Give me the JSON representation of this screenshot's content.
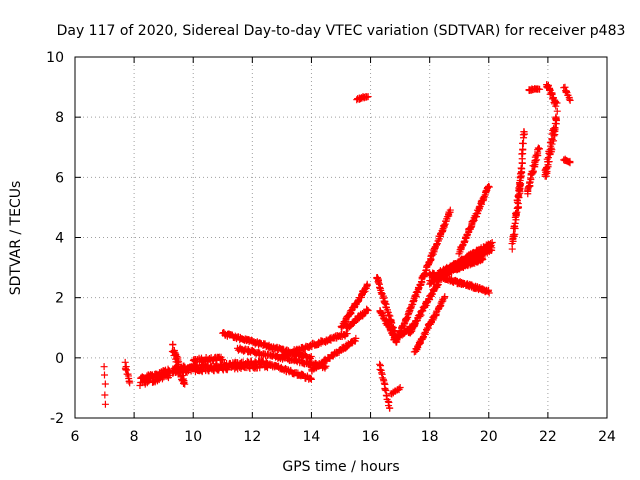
{
  "chart_data": {
    "type": "scatter",
    "title": "Day 117 of 2020, Sidereal Day-to-day VTEC variation (SDTVAR) for receiver p483",
    "xlabel": "GPS time / hours",
    "ylabel": "SDTVAR / TECUs",
    "xlim": [
      6,
      24
    ],
    "ylim": [
      -2,
      10
    ],
    "xticks": [
      "6",
      "8",
      "10",
      "12",
      "14",
      "16",
      "18",
      "20",
      "22",
      "24"
    ],
    "yticks": [
      "-2",
      "0",
      "2",
      "4",
      "6",
      "8",
      "10"
    ],
    "grid": true,
    "marker": "plus",
    "color": "#ff0000",
    "segments": [
      {
        "x0": 7.0,
        "x1": 7.02,
        "y0": -0.3,
        "y1": -1.5,
        "n": 5,
        "jitter": 0.1
      },
      {
        "x0": 7.7,
        "x1": 7.85,
        "y0": -0.2,
        "y1": -0.8,
        "n": 12,
        "jitter": 0.2
      },
      {
        "x0": 8.2,
        "x1": 9.2,
        "y0": -0.8,
        "y1": -0.5,
        "n": 90,
        "jitter": 0.3
      },
      {
        "x0": 9.3,
        "x1": 12.5,
        "y0": -0.4,
        "y1": -0.2,
        "n": 220,
        "jitter": 0.25
      },
      {
        "x0": 9.3,
        "x1": 9.7,
        "y0": 0.4,
        "y1": -0.9,
        "n": 40,
        "jitter": 0.35
      },
      {
        "x0": 10.0,
        "x1": 11.0,
        "y0": -0.1,
        "y1": 0.0,
        "n": 40,
        "jitter": 0.15
      },
      {
        "x0": 11.0,
        "x1": 14.0,
        "y0": 0.8,
        "y1": 0.0,
        "n": 130,
        "jitter": 0.1
      },
      {
        "x0": 11.5,
        "x1": 14.5,
        "y0": 0.3,
        "y1": -0.3,
        "n": 110,
        "jitter": 0.1
      },
      {
        "x0": 12.5,
        "x1": 14.0,
        "y0": -0.2,
        "y1": -0.7,
        "n": 60,
        "jitter": 0.1
      },
      {
        "x0": 13.0,
        "x1": 15.2,
        "y0": 0.1,
        "y1": 0.8,
        "n": 90,
        "jitter": 0.1
      },
      {
        "x0": 14.0,
        "x1": 15.5,
        "y0": -0.4,
        "y1": 0.6,
        "n": 70,
        "jitter": 0.1
      },
      {
        "x0": 15.0,
        "x1": 15.9,
        "y0": 1.0,
        "y1": 2.4,
        "n": 60,
        "jitter": 0.1
      },
      {
        "x0": 15.2,
        "x1": 15.9,
        "y0": 1.0,
        "y1": 1.6,
        "n": 40,
        "jitter": 0.1
      },
      {
        "x0": 15.55,
        "x1": 15.9,
        "y0": 8.6,
        "y1": 8.7,
        "n": 16,
        "jitter": 0.05
      },
      {
        "x0": 16.2,
        "x1": 16.9,
        "y0": 2.7,
        "y1": 0.6,
        "n": 50,
        "jitter": 0.1
      },
      {
        "x0": 16.3,
        "x1": 16.9,
        "y0": 1.6,
        "y1": 0.5,
        "n": 40,
        "jitter": 0.1
      },
      {
        "x0": 16.3,
        "x1": 16.65,
        "y0": -0.2,
        "y1": -1.7,
        "n": 22,
        "jitter": 0.1
      },
      {
        "x0": 16.7,
        "x1": 17.0,
        "y0": -1.2,
        "y1": -1.0,
        "n": 12,
        "jitter": 0.05
      },
      {
        "x0": 16.8,
        "x1": 17.5,
        "y0": 0.6,
        "y1": 1.1,
        "n": 40,
        "jitter": 0.1
      },
      {
        "x0": 17.0,
        "x1": 18.7,
        "y0": 0.8,
        "y1": 4.9,
        "n": 120,
        "jitter": 0.1
      },
      {
        "x0": 17.3,
        "x1": 18.3,
        "y0": 0.8,
        "y1": 2.5,
        "n": 70,
        "jitter": 0.1
      },
      {
        "x0": 17.5,
        "x1": 18.5,
        "y0": 0.2,
        "y1": 2.0,
        "n": 60,
        "jitter": 0.1
      },
      {
        "x0": 18.0,
        "x1": 20.1,
        "y0": 2.5,
        "y1": 3.6,
        "n": 130,
        "jitter": 0.12
      },
      {
        "x0": 18.0,
        "x1": 20.0,
        "y0": 2.8,
        "y1": 2.2,
        "n": 120,
        "jitter": 0.1
      },
      {
        "x0": 18.3,
        "x1": 20.1,
        "y0": 2.8,
        "y1": 3.8,
        "n": 110,
        "jitter": 0.12
      },
      {
        "x0": 19.0,
        "x1": 20.0,
        "y0": 3.5,
        "y1": 5.7,
        "n": 70,
        "jitter": 0.1
      },
      {
        "x0": 18.5,
        "x1": 19.8,
        "y0": 2.8,
        "y1": 3.3,
        "n": 80,
        "jitter": 0.1
      },
      {
        "x0": 20.8,
        "x1": 21.1,
        "y0": 3.7,
        "y1": 6.3,
        "n": 50,
        "jitter": 0.3
      },
      {
        "x0": 21.0,
        "x1": 21.2,
        "y0": 5.0,
        "y1": 7.6,
        "n": 30,
        "jitter": 0.2
      },
      {
        "x0": 21.35,
        "x1": 21.7,
        "y0": 8.9,
        "y1": 8.95,
        "n": 18,
        "jitter": 0.05
      },
      {
        "x0": 21.3,
        "x1": 21.7,
        "y0": 5.5,
        "y1": 7.0,
        "n": 40,
        "jitter": 0.2
      },
      {
        "x0": 21.9,
        "x1": 22.3,
        "y0": 6.0,
        "y1": 8.0,
        "n": 55,
        "jitter": 0.4
      },
      {
        "x0": 21.95,
        "x1": 22.3,
        "y0": 9.1,
        "y1": 8.4,
        "n": 25,
        "jitter": 0.15
      },
      {
        "x0": 22.55,
        "x1": 22.75,
        "y0": 9.0,
        "y1": 8.6,
        "n": 12,
        "jitter": 0.1
      },
      {
        "x0": 22.55,
        "x1": 22.75,
        "y0": 6.6,
        "y1": 6.5,
        "n": 12,
        "jitter": 0.05
      }
    ]
  }
}
